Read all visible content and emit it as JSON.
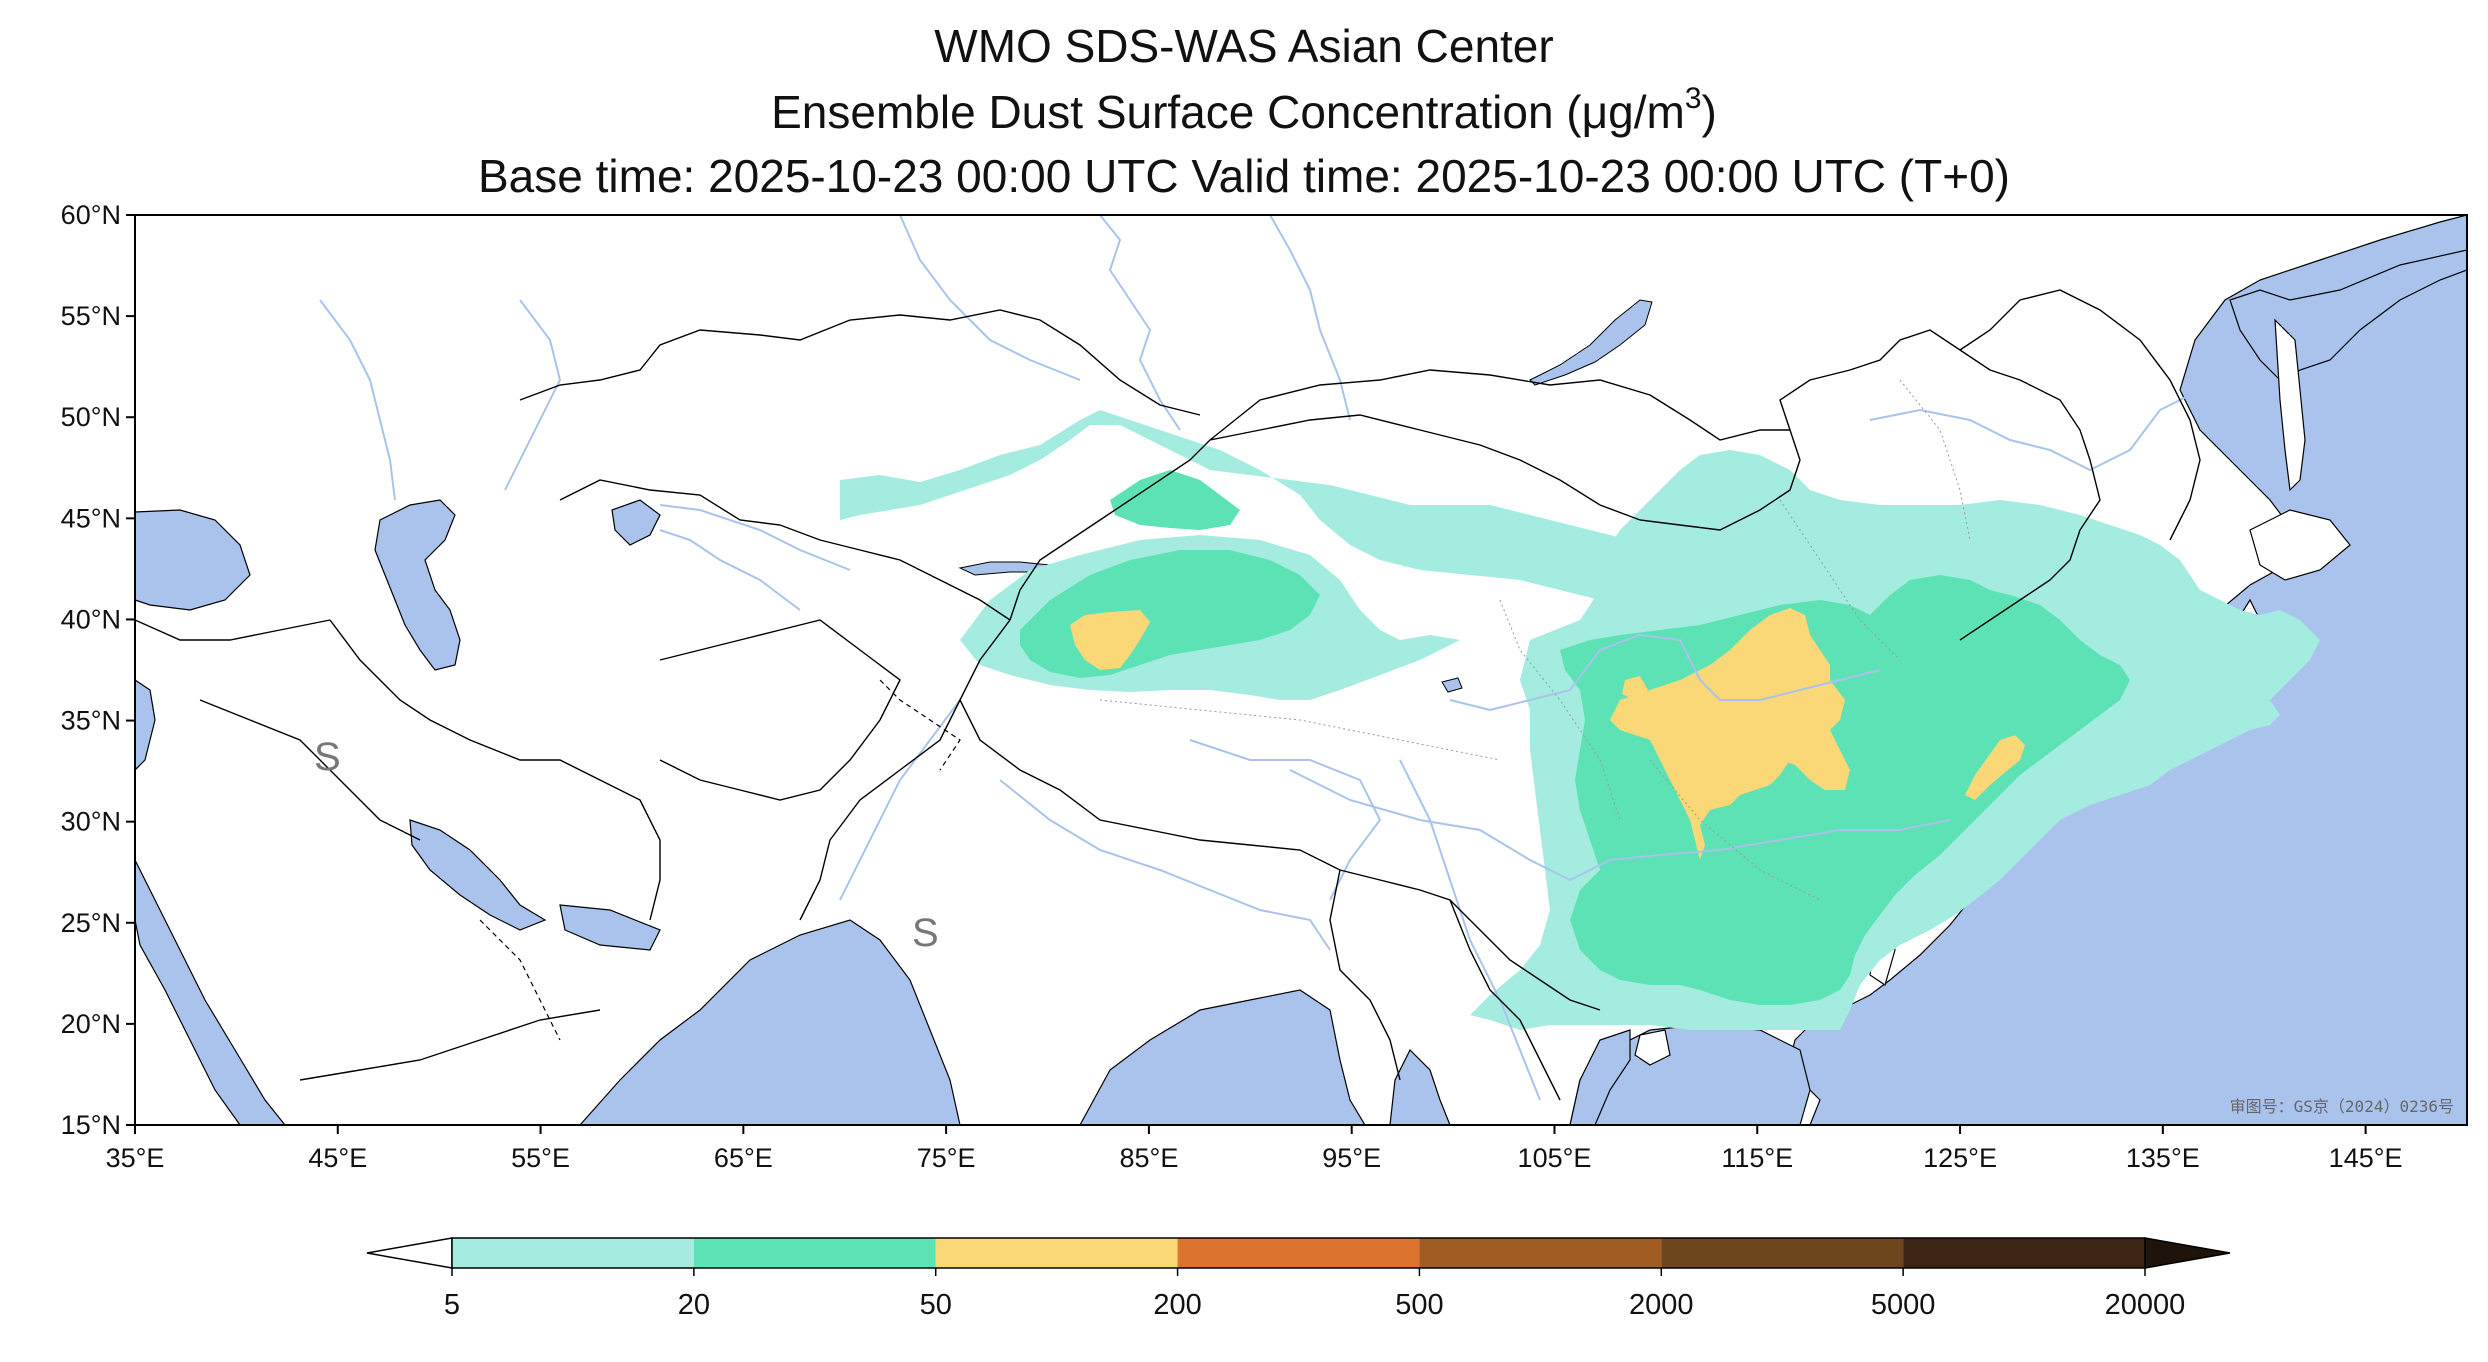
{
  "title": {
    "line1": "WMO SDS-WAS Asian Center",
    "line2_prefix": "Ensemble Dust Surface Concentration (",
    "line2_unit_mu": "μ",
    "line2_unit_rest": "g/m",
    "line2_sup": "3",
    "line2_suffix": ")",
    "line3": "Base time: 2025-10-23 00:00 UTC Valid time: 2025-10-23 00:00 UTC (T+0)"
  },
  "map": {
    "lon_range": [
      35,
      150
    ],
    "lat_range": [
      15,
      60
    ],
    "lon_ticks": [
      "35°E",
      "45°E",
      "55°E",
      "65°E",
      "75°E",
      "85°E",
      "95°E",
      "105°E",
      "115°E",
      "125°E",
      "135°E",
      "145°E"
    ],
    "lat_ticks": [
      "15°N",
      "20°N",
      "25°N",
      "30°N",
      "35°N",
      "40°N",
      "45°N",
      "50°N",
      "55°N",
      "60°N"
    ],
    "sea_color": "#a9c3ec",
    "land_color": "#ffffff",
    "river_color": "#a9c3ec",
    "border_color": "#000000",
    "watermark": "审图号：GS京（2024）0236号",
    "stamp_glyph": "S"
  },
  "colorbar": {
    "labels": [
      "5",
      "20",
      "50",
      "200",
      "500",
      "2000",
      "5000",
      "20000"
    ],
    "colors": [
      "#a4ece0",
      "#5ce2b5",
      "#fad777",
      "#dc742f",
      "#a15c24",
      "#6f451e",
      "#3d2414"
    ],
    "under_color": "#ffffff",
    "over_color": "#1e140b",
    "extend": "both"
  },
  "legend_levels": [
    {
      "range": "5-20",
      "color": "#a4ece0"
    },
    {
      "range": "20-50",
      "color": "#5ce2b5"
    },
    {
      "range": "50-200",
      "color": "#fad777"
    }
  ]
}
